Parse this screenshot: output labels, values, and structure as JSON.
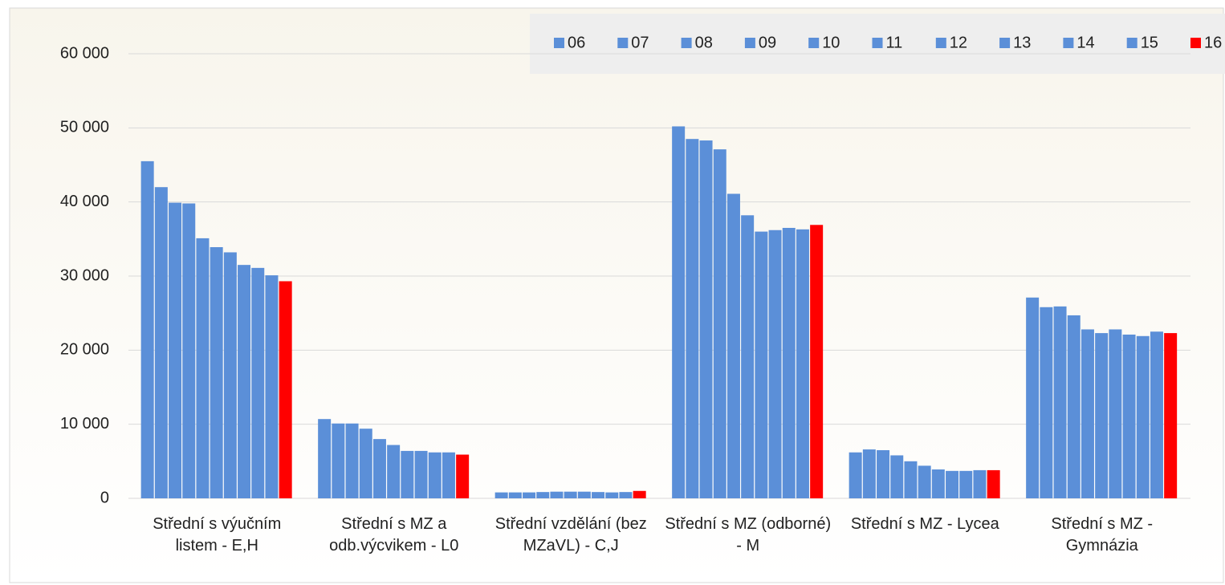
{
  "chart_data": {
    "type": "bar",
    "categories": [
      "Střední s výučním listem - E,H",
      "Střední s MZ a odb.výcvikem - L0",
      "Střední vzdělání (bez MZaVL) - C,J",
      "Střední s MZ (odborné) - M",
      "Střední s MZ - Lycea",
      "Střední s MZ - Gymnázia"
    ],
    "series": [
      {
        "name": "06",
        "color": "#5b8fd8",
        "values": [
          45500,
          10700,
          800,
          50200,
          6200,
          27100
        ]
      },
      {
        "name": "07",
        "color": "#5b8fd8",
        "values": [
          42000,
          10100,
          800,
          48500,
          6600,
          25800
        ]
      },
      {
        "name": "08",
        "color": "#5b8fd8",
        "values": [
          39900,
          10100,
          800,
          48300,
          6500,
          25900
        ]
      },
      {
        "name": "09",
        "color": "#5b8fd8",
        "values": [
          39800,
          9400,
          850,
          47100,
          5800,
          24700
        ]
      },
      {
        "name": "10",
        "color": "#5b8fd8",
        "values": [
          35100,
          8000,
          900,
          41100,
          5000,
          22800
        ]
      },
      {
        "name": "11",
        "color": "#5b8fd8",
        "values": [
          33900,
          7200,
          900,
          38200,
          4400,
          22300
        ]
      },
      {
        "name": "12",
        "color": "#5b8fd8",
        "values": [
          33200,
          6400,
          900,
          36000,
          3900,
          22800
        ]
      },
      {
        "name": "13",
        "color": "#5b8fd8",
        "values": [
          31500,
          6400,
          850,
          36200,
          3700,
          22100
        ]
      },
      {
        "name": "14",
        "color": "#5b8fd8",
        "values": [
          31100,
          6200,
          800,
          36500,
          3700,
          21900
        ]
      },
      {
        "name": "15",
        "color": "#5b8fd8",
        "values": [
          30100,
          6200,
          850,
          36300,
          3800,
          22500
        ]
      },
      {
        "name": "16",
        "color": "#ff0000",
        "values": [
          29300,
          5900,
          1000,
          36900,
          3800,
          22300
        ]
      }
    ],
    "ylim": [
      0,
      60000
    ],
    "yticks": [
      {
        "value": 0,
        "label": "0"
      },
      {
        "value": 10000,
        "label": "10 000"
      },
      {
        "value": 20000,
        "label": "20 000"
      },
      {
        "value": 30000,
        "label": "30 000"
      },
      {
        "value": 40000,
        "label": "40 000"
      },
      {
        "value": 50000,
        "label": "50 000"
      },
      {
        "value": 60000,
        "label": "60 000"
      }
    ],
    "grid": true,
    "legend": "top-right"
  }
}
